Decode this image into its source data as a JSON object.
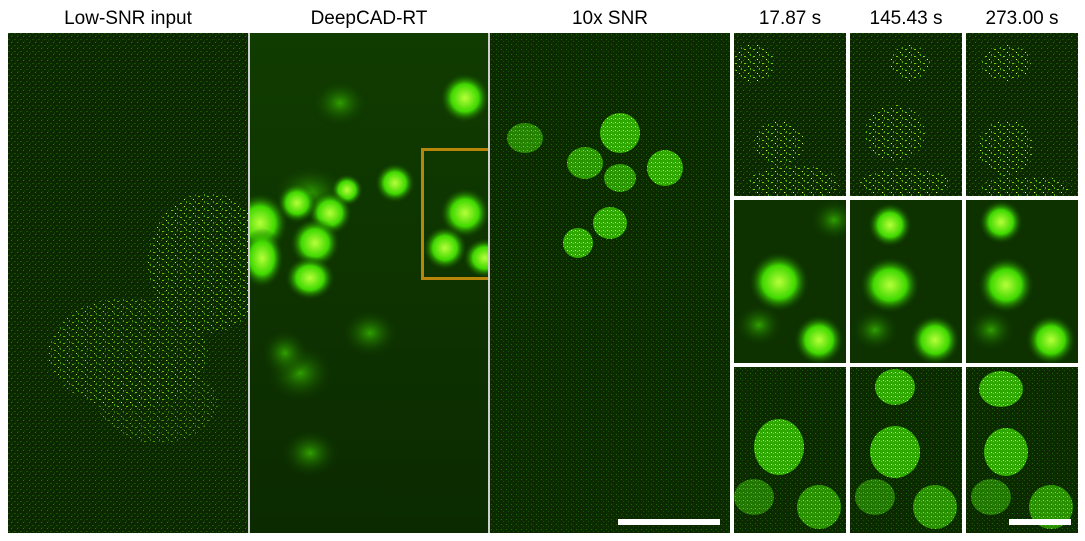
{
  "labels": {
    "low_snr": "Low-SNR input",
    "deepcad": "DeepCAD-RT",
    "ten_x": "10x SNR",
    "t1": "17.87 s",
    "t2": "145.43 s",
    "t3": "273.00 s"
  },
  "colors": {
    "background_dark": "#0a2a00",
    "signal_green": "#39d400",
    "signal_bright": "#d9ff3a",
    "roi_box": "#b8860b",
    "separator": "#cfcfcf",
    "scalebar": "#ffffff"
  }
}
